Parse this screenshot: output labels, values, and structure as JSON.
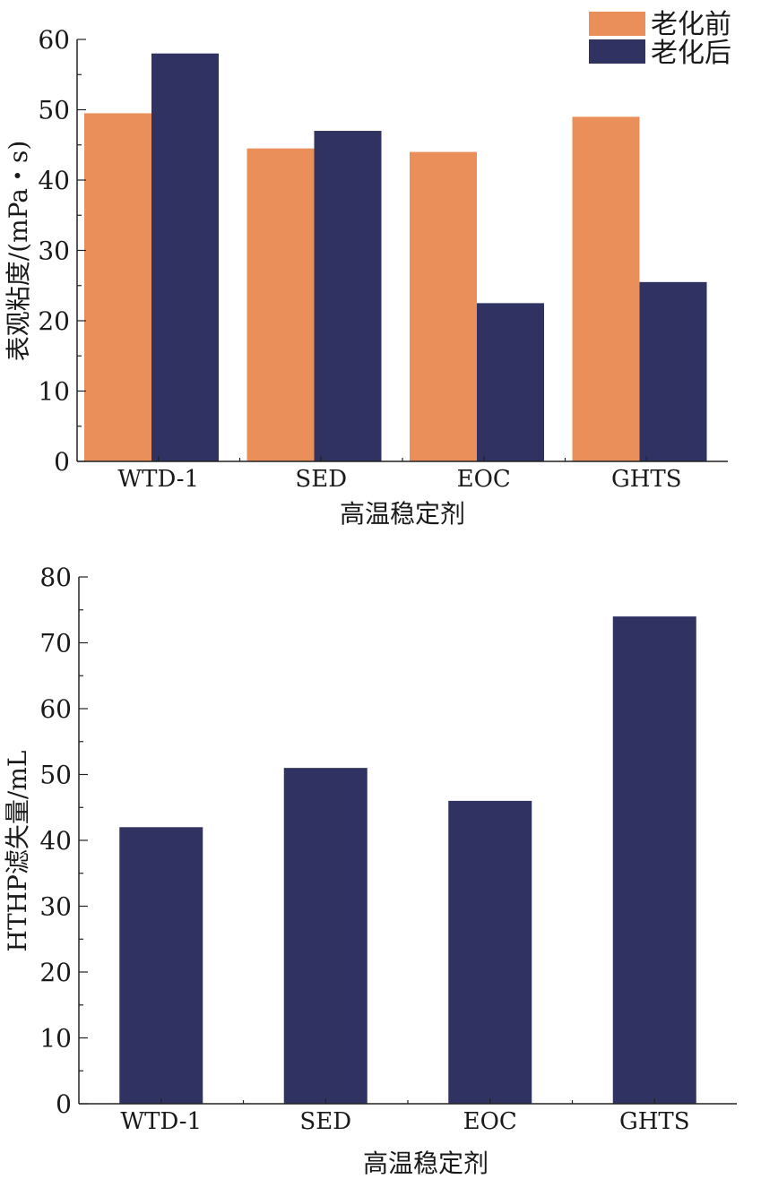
{
  "chart_data": [
    {
      "type": "bar",
      "categories": [
        "WTD-1",
        "SED",
        "EOC",
        "GHTS"
      ],
      "series": [
        {
          "name": "老化前",
          "values": [
            49.5,
            44.5,
            44,
            49
          ]
        },
        {
          "name": "老化后",
          "values": [
            58,
            47,
            22.5,
            25.5
          ]
        }
      ],
      "xlabel": "高温稳定剂",
      "ylabel": "表观粘度/(mPa・s)",
      "ylim": [
        0,
        60
      ],
      "yticks": [
        0,
        10,
        20,
        30,
        40,
        50,
        60
      ],
      "grid": false,
      "legend": "top-right",
      "colors": [
        "#EB8F5A",
        "#303362"
      ]
    },
    {
      "type": "bar",
      "categories": [
        "WTD-1",
        "SED",
        "EOC",
        "GHTS"
      ],
      "series": [
        {
          "values": [
            42,
            51,
            46,
            74
          ]
        }
      ],
      "xlabel": "高温稳定剂",
      "ylabel": "HTHP滤失量/mL",
      "ylim": [
        0,
        80
      ],
      "yticks": [
        0,
        10,
        20,
        30,
        40,
        50,
        60,
        70,
        80
      ],
      "grid": false,
      "colors": [
        "#303362"
      ]
    }
  ]
}
